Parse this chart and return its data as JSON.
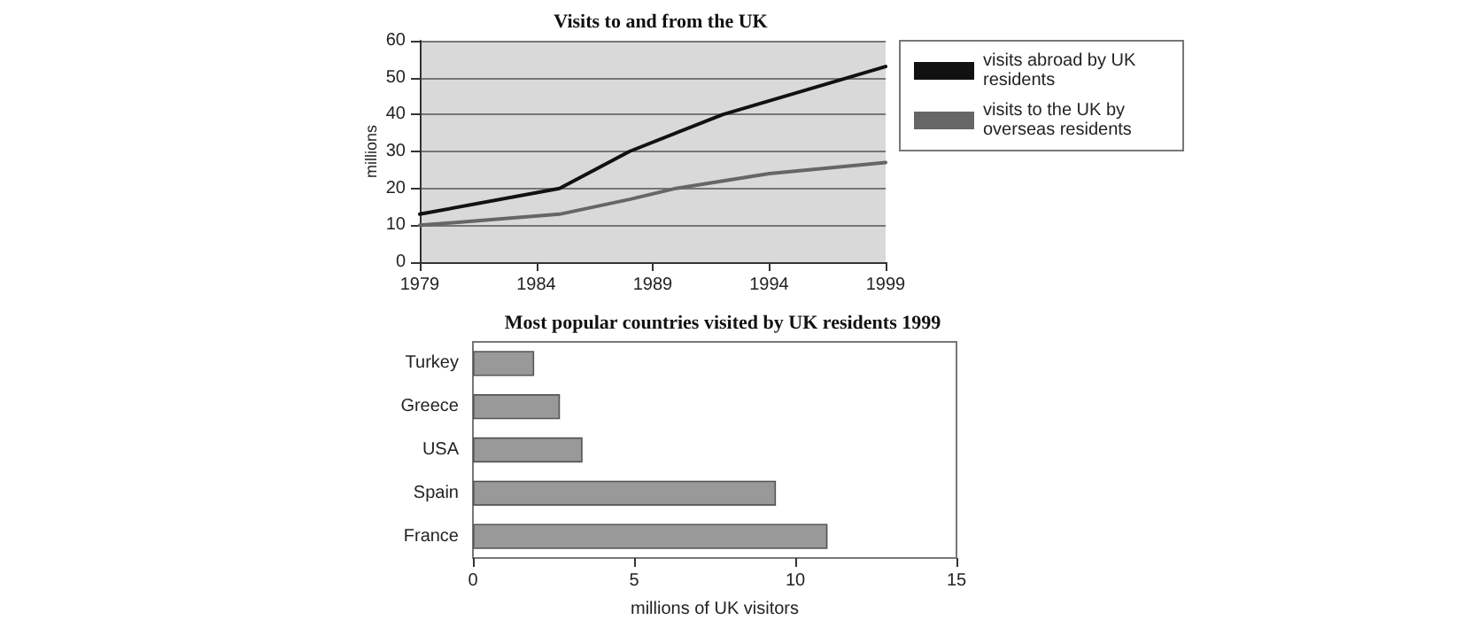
{
  "chart_data": [
    {
      "type": "line",
      "title": "Visits to and from the UK",
      "ylabel": "millions",
      "xlim": [
        1979,
        1999
      ],
      "xticks": [
        1979,
        1984,
        1989,
        1994,
        1999
      ],
      "ylim": [
        0,
        60
      ],
      "yticks": [
        0,
        10,
        20,
        30,
        40,
        50,
        60
      ],
      "grid": "y",
      "legend": "right",
      "marker": "none",
      "series": [
        {
          "name": "visits abroad by UK residents",
          "color": "#111111",
          "x": [
            1979,
            1985,
            1988,
            1992,
            1999
          ],
          "values": [
            13,
            20,
            30,
            40,
            53
          ]
        },
        {
          "name": "visits to the UK by overseas residents",
          "color": "#666666",
          "x": [
            1979,
            1985,
            1988,
            1990,
            1994,
            1999
          ],
          "values": [
            10,
            13,
            17,
            20,
            24,
            27
          ]
        }
      ]
    },
    {
      "type": "bar",
      "orientation": "horizontal",
      "title": "Most popular countries visited by UK residents 1999",
      "xlabel": "millions of UK visitors",
      "categories": [
        "Turkey",
        "Greece",
        "USA",
        "Spain",
        "France"
      ],
      "values": [
        1.9,
        2.7,
        3.4,
        9.4,
        11
      ],
      "color": "#999999",
      "xlim": [
        0,
        15
      ],
      "xticks": [
        0,
        5,
        10,
        15
      ],
      "grid": false,
      "legend": false
    }
  ]
}
